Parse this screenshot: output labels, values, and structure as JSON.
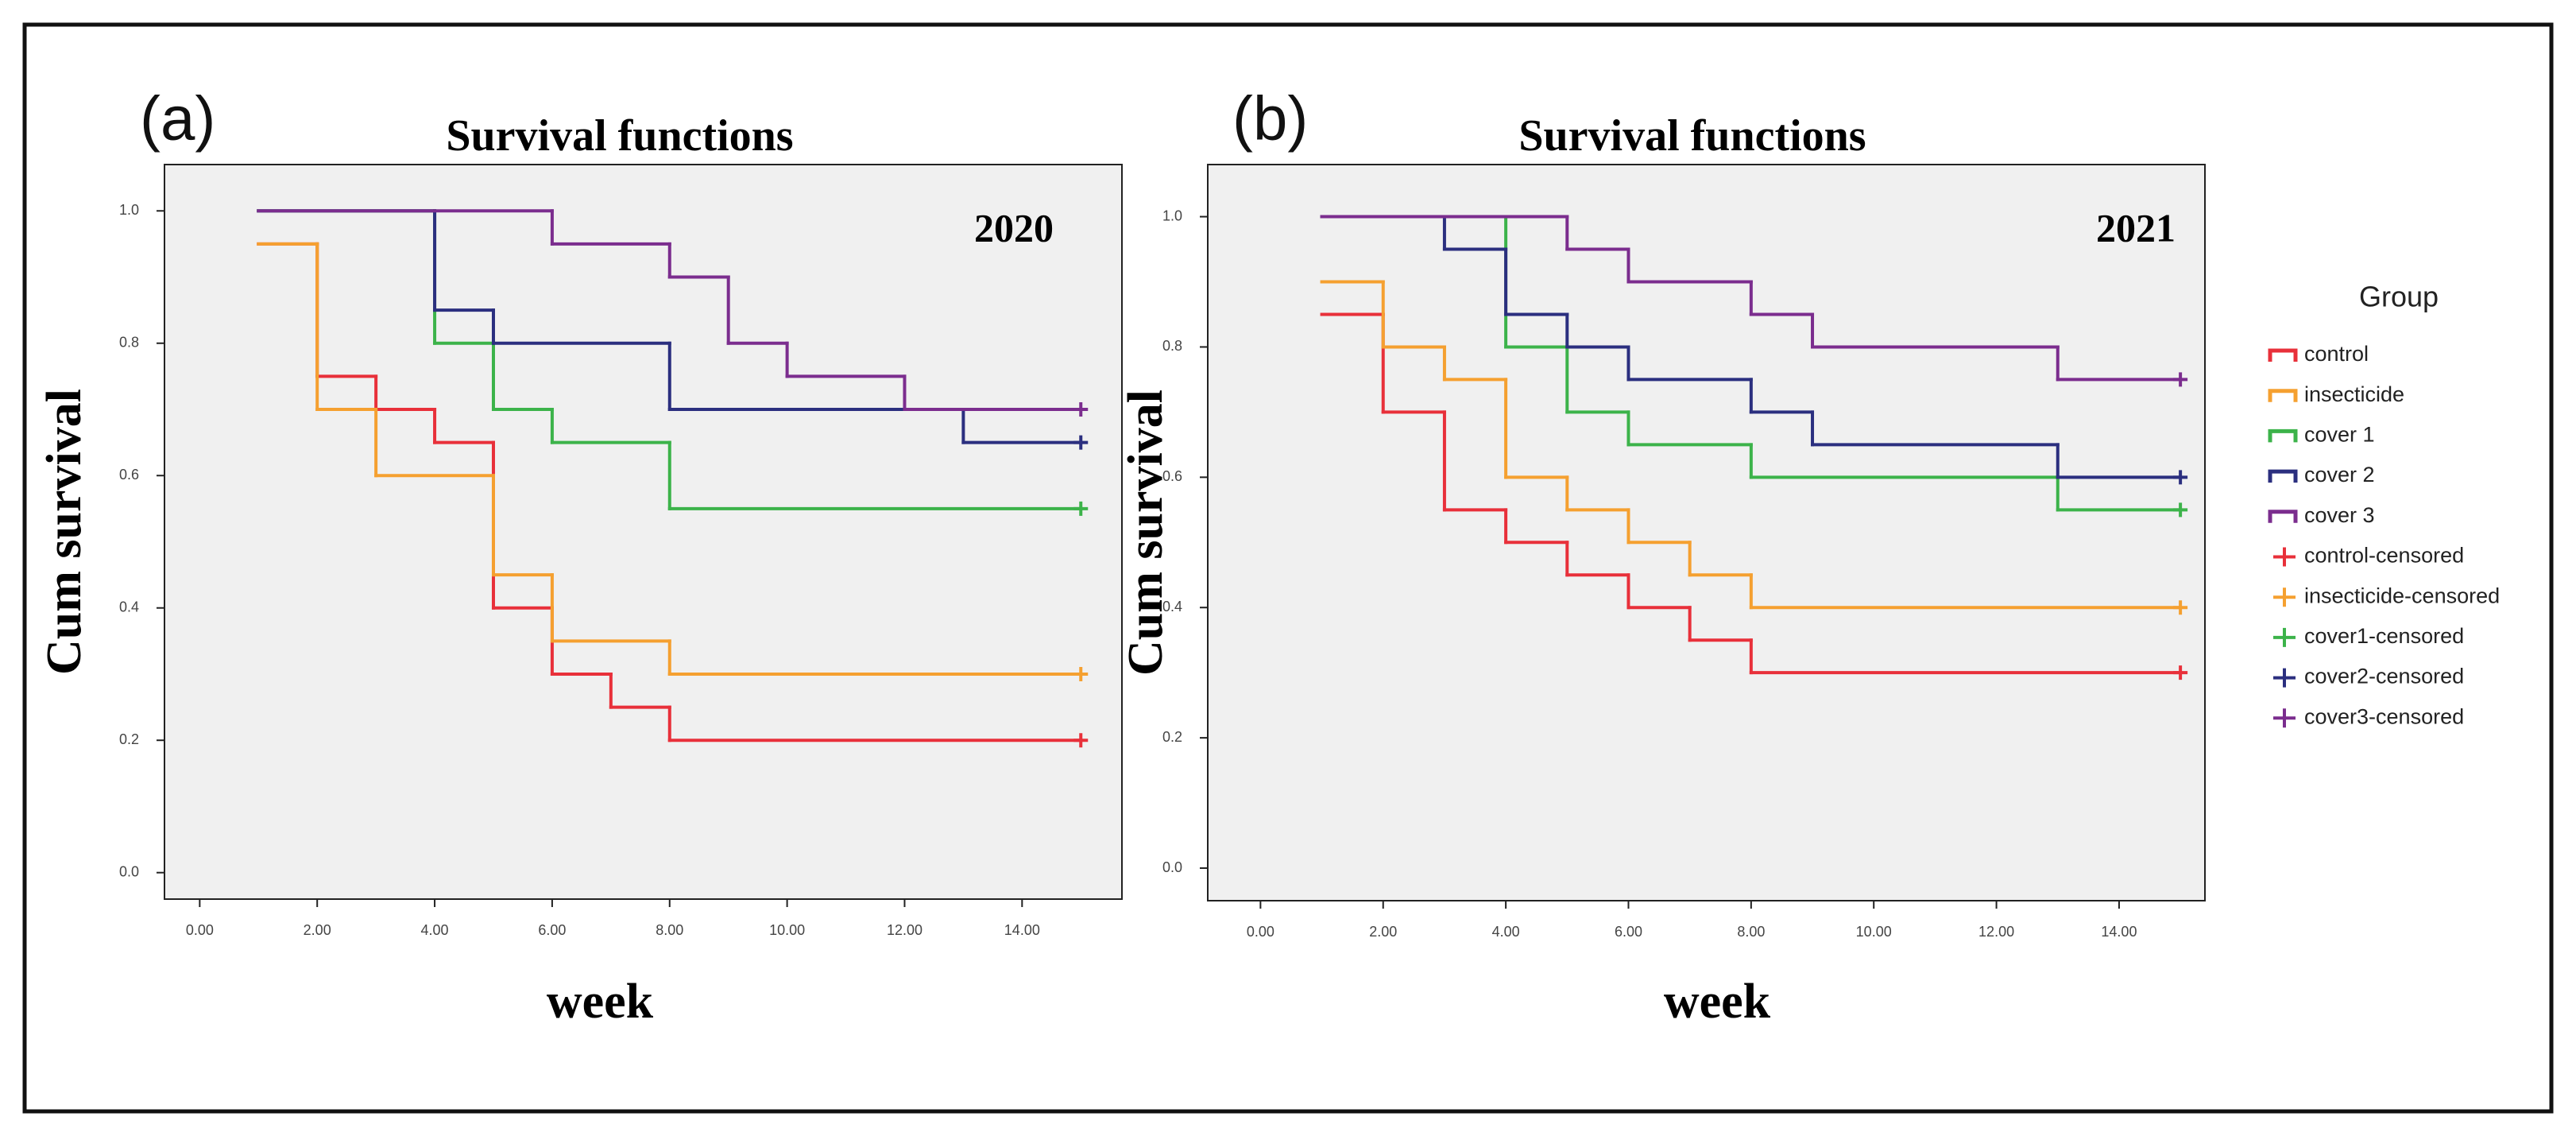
{
  "chart_data": [
    {
      "type": "step",
      "label": "(a)",
      "title": "Survival functions",
      "annotation": "2020",
      "xlabel": "week",
      "ylabel": "Cum survival",
      "xlim": [
        -0.6,
        15.7
      ],
      "ylim": [
        -0.04,
        1.07
      ],
      "xticks": [
        {
          "value": 0,
          "label": "0.00"
        },
        {
          "value": 2,
          "label": "2.00"
        },
        {
          "value": 4,
          "label": "4.00"
        },
        {
          "value": 6,
          "label": "6.00"
        },
        {
          "value": 8,
          "label": "8.00"
        },
        {
          "value": 10,
          "label": "10.00"
        },
        {
          "value": 12,
          "label": "12.00"
        },
        {
          "value": 14,
          "label": "14.00"
        }
      ],
      "yticks": [
        {
          "value": 0,
          "label": "0.0"
        },
        {
          "value": 0.2,
          "label": "0.2"
        },
        {
          "value": 0.4,
          "label": "0.4"
        },
        {
          "value": 0.6,
          "label": "0.6"
        },
        {
          "value": 0.8,
          "label": "0.8"
        },
        {
          "value": 1,
          "label": "1.0"
        }
      ],
      "series": [
        {
          "color": "#e8303a",
          "x": [
            1,
            2,
            3,
            4,
            5,
            6,
            7,
            8,
            15
          ],
          "values": [
            0.95,
            0.75,
            0.7,
            0.65,
            0.4,
            0.3,
            0.25,
            0.2,
            0.2
          ]
        },
        {
          "color": "#f5a030",
          "x": [
            1,
            2,
            3,
            5,
            6,
            8,
            15
          ],
          "values": [
            0.95,
            0.7,
            0.6,
            0.45,
            0.35,
            0.3,
            0.3
          ]
        },
        {
          "color": "#3cb34a",
          "x": [
            1,
            4,
            5,
            6,
            8,
            15
          ],
          "values": [
            1,
            0.8,
            0.7,
            0.65,
            0.55,
            0.55
          ]
        },
        {
          "color": "#2b2f7f",
          "x": [
            1,
            4,
            5,
            8,
            13,
            15
          ],
          "values": [
            1,
            0.85,
            0.8,
            0.7,
            0.65,
            0.65
          ]
        },
        {
          "color": "#7b2d8e",
          "x": [
            1,
            6,
            8,
            9,
            10,
            12,
            15
          ],
          "values": [
            1,
            0.95,
            0.9,
            0.8,
            0.75,
            0.7,
            0.7
          ]
        },
        {
          "color": "#e8303a",
          "marker": "plus",
          "x": [
            15
          ],
          "values": [
            0.2
          ]
        },
        {
          "color": "#f5a030",
          "marker": "plus",
          "x": [
            15
          ],
          "values": [
            0.3
          ]
        },
        {
          "color": "#3cb34a",
          "marker": "plus",
          "x": [
            15
          ],
          "values": [
            0.55
          ]
        },
        {
          "color": "#2b2f7f",
          "marker": "plus",
          "x": [
            15
          ],
          "values": [
            0.65
          ]
        },
        {
          "color": "#7b2d8e",
          "marker": "plus",
          "x": [
            15
          ],
          "values": [
            0.7
          ]
        }
      ]
    },
    {
      "type": "step",
      "label": "(b)",
      "title": "Survival functions",
      "annotation": "2021",
      "xlabel": "week",
      "ylabel": "Cum survival",
      "xlim": [
        -0.86,
        15.4
      ],
      "ylim": [
        -0.05,
        1.08
      ],
      "xticks": [
        {
          "value": 0,
          "label": "0.00"
        },
        {
          "value": 2,
          "label": "2.00"
        },
        {
          "value": 4,
          "label": "4.00"
        },
        {
          "value": 6,
          "label": "6.00"
        },
        {
          "value": 8,
          "label": "8.00"
        },
        {
          "value": 10,
          "label": "10.00"
        },
        {
          "value": 12,
          "label": "12.00"
        },
        {
          "value": 14,
          "label": "14.00"
        }
      ],
      "yticks": [
        {
          "value": 0,
          "label": "0.0"
        },
        {
          "value": 0.2,
          "label": "0.2"
        },
        {
          "value": 0.4,
          "label": "0.4"
        },
        {
          "value": 0.6,
          "label": "0.6"
        },
        {
          "value": 0.8,
          "label": "0.8"
        },
        {
          "value": 1,
          "label": "1.0"
        }
      ],
      "legend_title": "Group",
      "series": [
        {
          "name": "control",
          "color": "#e8303a",
          "x": [
            1,
            2,
            3,
            4,
            5,
            6,
            7,
            8,
            15
          ],
          "values": [
            0.85,
            0.7,
            0.55,
            0.5,
            0.45,
            0.4,
            0.35,
            0.3,
            0.3
          ]
        },
        {
          "name": "insecticide",
          "color": "#f5a030",
          "x": [
            1,
            2,
            3,
            4,
            5,
            6,
            7,
            8,
            15
          ],
          "values": [
            0.9,
            0.8,
            0.75,
            0.6,
            0.55,
            0.5,
            0.45,
            0.4,
            0.4
          ]
        },
        {
          "name": "cover 1",
          "color": "#3cb34a",
          "x": [
            1,
            4,
            5,
            6,
            8,
            13,
            15
          ],
          "values": [
            1,
            0.8,
            0.7,
            0.65,
            0.6,
            0.55,
            0.55
          ]
        },
        {
          "name": "cover 2",
          "color": "#2b2f7f",
          "x": [
            1,
            3,
            4,
            5,
            6,
            8,
            9,
            13,
            15
          ],
          "values": [
            1,
            0.95,
            0.85,
            0.8,
            0.75,
            0.7,
            0.65,
            0.6,
            0.6
          ]
        },
        {
          "name": "cover 3",
          "color": "#7b2d8e",
          "x": [
            1,
            5,
            6,
            8,
            9,
            13,
            15
          ],
          "values": [
            1,
            0.95,
            0.9,
            0.85,
            0.8,
            0.75,
            0.75
          ]
        },
        {
          "name": "control-censored",
          "color": "#e8303a",
          "marker": "plus",
          "x": [
            15
          ],
          "values": [
            0.3
          ]
        },
        {
          "name": "insecticide-censored",
          "color": "#f5a030",
          "marker": "plus",
          "x": [
            15
          ],
          "values": [
            0.4
          ]
        },
        {
          "name": "cover1-censored",
          "color": "#3cb34a",
          "marker": "plus",
          "x": [
            15
          ],
          "values": [
            0.55
          ]
        },
        {
          "name": "cover2-censored",
          "color": "#2b2f7f",
          "marker": "plus",
          "x": [
            15
          ],
          "values": [
            0.6
          ]
        },
        {
          "name": "cover3-censored",
          "color": "#7b2d8e",
          "marker": "plus",
          "x": [
            15
          ],
          "values": [
            0.75
          ]
        }
      ]
    }
  ]
}
